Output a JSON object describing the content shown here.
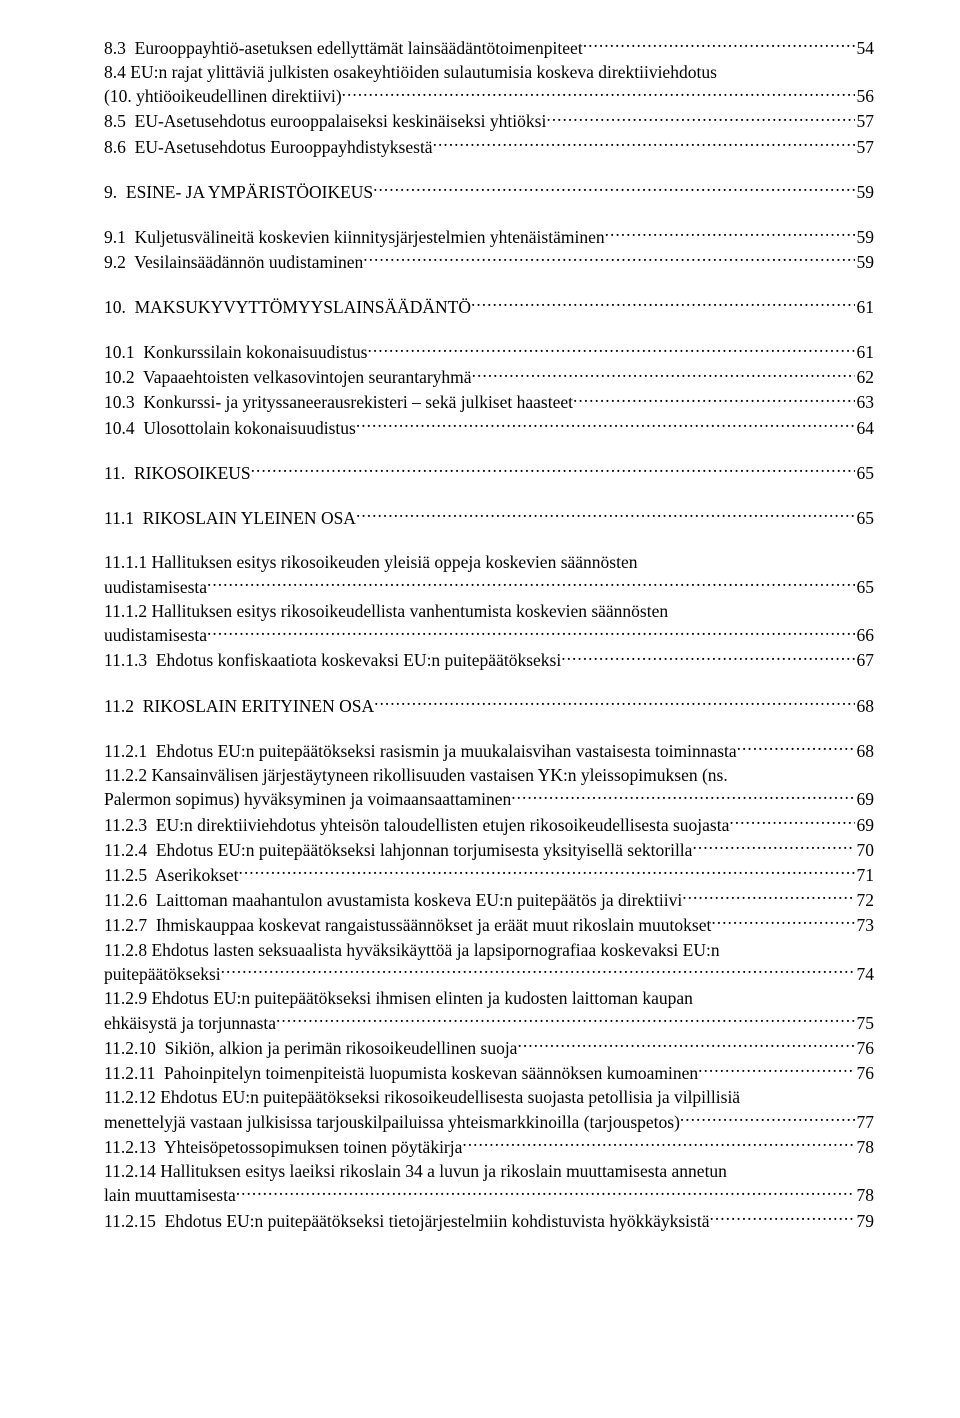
{
  "toc": {
    "entries": [
      {
        "label": "8.3  Eurooppayhtiö-asetuksen edellyttämät lainsäädäntötoimenpiteet",
        "page": "54"
      },
      {
        "wrapped": true,
        "line1": "8.4  EU:n rajat ylittäviä julkisten osakeyhtiöiden sulautumisia koskeva direktiiviehdotus",
        "line2": "(10. yhtiöoikeudellinen direktiivi)",
        "page": "56"
      },
      {
        "label": "8.5  EU-Asetusehdotus eurooppalaiseksi keskinäiseksi yhtiöksi",
        "page": "57"
      },
      {
        "label": "8.6  EU-Asetusehdotus Eurooppayhdistyksestä",
        "page": "57"
      },
      {
        "gap": "med"
      },
      {
        "label": "9.  ESINE- JA YMPÄRISTÖOIKEUS",
        "page": "59"
      },
      {
        "gap": "med"
      },
      {
        "label": "9.1  Kuljetusvälineitä koskevien kiinnitysjärjestelmien yhtenäistäminen",
        "page": "59"
      },
      {
        "label": "9.2  Vesilainsäädännön uudistaminen",
        "page": "59"
      },
      {
        "gap": "med"
      },
      {
        "label": "10.  MAKSUKYVYTTÖMYYSLAINSÄÄDÄNTÖ",
        "page": "61"
      },
      {
        "gap": "med"
      },
      {
        "label": "10.1  Konkurssilain kokonaisuudistus",
        "page": "61"
      },
      {
        "label": "10.2  Vapaaehtoisten velkasovintojen seurantaryhmä",
        "page": "62"
      },
      {
        "label": "10.3  Konkurssi- ja yrityssaneerausrekisteri – sekä julkiset haasteet",
        "page": "63"
      },
      {
        "label": "10.4  Ulosottolain kokonaisuudistus",
        "page": "64"
      },
      {
        "gap": "med"
      },
      {
        "label": "11.  RIKOSOIKEUS",
        "page": "65"
      },
      {
        "gap": "med"
      },
      {
        "label": "11.1  RIKOSLAIN YLEINEN OSA",
        "page": "65"
      },
      {
        "gap": "med"
      },
      {
        "wrapped": true,
        "line1": "11.1.1  Hallituksen esitys rikosoikeuden yleisiä oppeja koskevien säännösten",
        "line2": "uudistamisesta",
        "page": "65"
      },
      {
        "wrapped": true,
        "line1": "11.1.2  Hallituksen esitys rikosoikeudellista vanhentumista koskevien säännösten",
        "line2": "uudistamisesta",
        "page": "66"
      },
      {
        "label": "11.1.3  Ehdotus konfiskaatiota koskevaksi EU:n puitepäätökseksi",
        "page": "67"
      },
      {
        "gap": "med"
      },
      {
        "label": "11.2  RIKOSLAIN ERITYINEN OSA",
        "page": "68"
      },
      {
        "gap": "med"
      },
      {
        "label": "11.2.1  Ehdotus EU:n puitepäätökseksi rasismin ja muukalaisvihan vastaisesta toiminnasta",
        "page": "68"
      },
      {
        "wrapped": true,
        "line1": "11.2.2  Kansainvälisen järjestäytyneen rikollisuuden vastaisen YK:n yleissopimuksen (ns.",
        "line2": "Palermon sopimus) hyväksyminen ja voimaansaattaminen",
        "page": "69"
      },
      {
        "label": "11.2.3  EU:n direktiiviehdotus yhteisön taloudellisten etujen rikosoikeudellisesta suojasta",
        "page": "69"
      },
      {
        "label": "11.2.4  Ehdotus EU:n puitepäätökseksi lahjonnan torjumisesta yksityisellä sektorilla",
        "page": "70"
      },
      {
        "label": "11.2.5  Aserikokset",
        "page": "71"
      },
      {
        "label": "11.2.6  Laittoman maahantulon avustamista koskeva EU:n puitepäätös ja direktiivi",
        "page": "72"
      },
      {
        "label": "11.2.7  Ihmiskauppaa koskevat rangaistussäännökset ja eräät muut rikoslain muutokset",
        "page": "73"
      },
      {
        "wrapped": true,
        "line1": "11.2.8  Ehdotus lasten seksuaalista hyväksikäyttöä ja lapsipornografiaa koskevaksi EU:n",
        "line2": "puitepäätökseksi",
        "page": "74"
      },
      {
        "wrapped": true,
        "line1": "11.2.9  Ehdotus EU:n puitepäätökseksi ihmisen elinten ja kudosten laittoman kaupan",
        "line2": "ehkäisystä ja torjunnasta",
        "page": "75"
      },
      {
        "label": "11.2.10  Sikiön, alkion ja perimän rikosoikeudellinen suoja",
        "page": "76"
      },
      {
        "label": "11.2.11  Pahoinpitelyn toimenpiteistä luopumista koskevan säännöksen kumoaminen",
        "page": "76"
      },
      {
        "wrapped": true,
        "line1": "11.2.12  Ehdotus EU:n puitepäätökseksi rikosoikeudellisesta suojasta petollisia ja vilpillisiä",
        "line2": "menettelyjä vastaan julkisissa tarjouskilpailuissa yhteismarkkinoilla (tarjouspetos)",
        "page": "77"
      },
      {
        "label": "11.2.13  Yhteisöpetossopimuksen toinen pöytäkirja",
        "page": "78"
      },
      {
        "wrapped": true,
        "line1": "11.2.14  Hallituksen esitys laeiksi rikoslain 34 a luvun ja rikoslain muuttamisesta annetun",
        "line2": "lain muuttamisesta",
        "page": "78"
      },
      {
        "label": "11.2.15  Ehdotus EU:n puitepäätökseksi tietojärjestelmiin kohdistuvista hyökkäyksistä",
        "page": "79"
      }
    ]
  }
}
